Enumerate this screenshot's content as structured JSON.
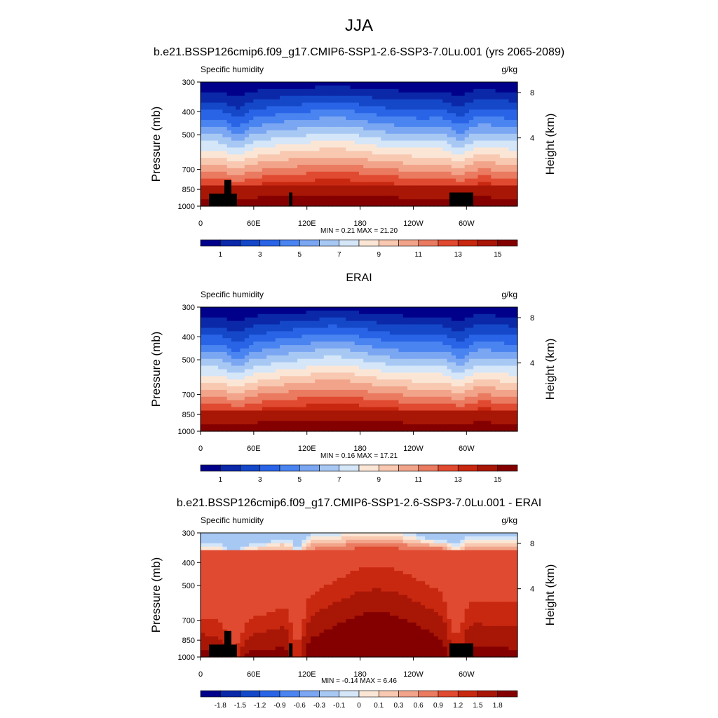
{
  "figure": {
    "title": "JJA",
    "panels": [
      {
        "title": "b.e21.BSSP126cmip6.f09_g17.CMIP6-SSP1-2.6-SSP3-7.0Lu.001 (yrs 2065-2089)",
        "left_label": "Specific humidity",
        "right_label": "g/kg",
        "stats": "MIN =   0.21  MAX =  21.20",
        "kind": "abs",
        "colorbar_labels": [
          "1",
          "3",
          "5",
          "7",
          "9",
          "11",
          "13",
          "15"
        ]
      },
      {
        "title": "ERAI",
        "left_label": "Specific humidity",
        "right_label": "g/kg",
        "stats": "MIN =   0.16  MAX =  17.21",
        "kind": "abs",
        "colorbar_labels": [
          "1",
          "3",
          "5",
          "7",
          "9",
          "11",
          "13",
          "15"
        ]
      },
      {
        "title": "b.e21.BSSP126cmip6.f09_g17.CMIP6-SSP1-2.6-SSP3-7.0Lu.001 - ERAI",
        "left_label": "Specific humidity",
        "right_label": "g/kg",
        "stats": "MIN =  -0.14  MAX =   6.46",
        "kind": "diff",
        "colorbar_labels": [
          "-1.8",
          "-1.5",
          "-1.2",
          "-0.9",
          "-0.6",
          "-0.3",
          "-0.1",
          "0",
          "0.1",
          "0.3",
          "0.6",
          "0.9",
          "1.2",
          "1.5",
          "1.8"
        ]
      }
    ]
  },
  "axes": {
    "ylabel_left": "Pressure (mb)",
    "ylabel_right": "Height (km)",
    "pressure_ticks": [
      "300",
      "400",
      "500",
      "700",
      "850",
      "1000"
    ],
    "height_ticks": [
      "8",
      "4"
    ],
    "lon_ticks": [
      "0",
      "60E",
      "120E",
      "180",
      "120W",
      "60W"
    ]
  },
  "colors": {
    "abs_scale": [
      "#00008b",
      "#0a28a8",
      "#1448c8",
      "#2a64e6",
      "#4a84f0",
      "#7aa6f2",
      "#a8c8f4",
      "#d4e6f8",
      "#fbe6d6",
      "#f8c8b0",
      "#f2a48a",
      "#ea7a60",
      "#e04a30",
      "#c82810",
      "#a81606",
      "#840000"
    ],
    "diff_scale": [
      "#00008b",
      "#0a28a8",
      "#1448c8",
      "#2a64e6",
      "#4a84f0",
      "#7aa6f2",
      "#a8c8f4",
      "#d4e6f8",
      "#fbe6d6",
      "#f8c8b0",
      "#f2a48a",
      "#ea7a60",
      "#e04a30",
      "#c82810",
      "#a81606",
      "#840000"
    ],
    "land_mask": "#000000"
  },
  "chart_data": [
    {
      "type": "heatmap",
      "title": "b.e21.BSSP126cmip6.f09_g17.CMIP6-SSP1-2.6-SSP3-7.0Lu.001 (yrs 2065-2089)",
      "variable": "Specific humidity",
      "units": "g/kg",
      "x_ticks": [
        "0",
        "60E",
        "120E",
        "180",
        "120W",
        "60W"
      ],
      "y_ticks_pressure_mb": [
        300,
        400,
        500,
        700,
        850,
        1000
      ],
      "y_ticks_height_km": [
        8,
        4
      ],
      "levels": [
        1,
        2,
        3,
        4,
        5,
        6,
        7,
        8,
        9,
        10,
        11,
        12,
        13,
        14,
        15
      ],
      "min": 0.21,
      "max": 21.2
    },
    {
      "type": "heatmap",
      "title": "ERAI",
      "variable": "Specific humidity",
      "units": "g/kg",
      "x_ticks": [
        "0",
        "60E",
        "120E",
        "180",
        "120W",
        "60W"
      ],
      "y_ticks_pressure_mb": [
        300,
        400,
        500,
        700,
        850,
        1000
      ],
      "y_ticks_height_km": [
        8,
        4
      ],
      "levels": [
        1,
        2,
        3,
        4,
        5,
        6,
        7,
        8,
        9,
        10,
        11,
        12,
        13,
        14,
        15
      ],
      "min": 0.16,
      "max": 17.21
    },
    {
      "type": "heatmap",
      "title": "b.e21.BSSP126cmip6.f09_g17.CMIP6-SSP1-2.6-SSP3-7.0Lu.001 - ERAI",
      "variable": "Specific humidity",
      "units": "g/kg",
      "x_ticks": [
        "0",
        "60E",
        "120E",
        "180",
        "120W",
        "60W"
      ],
      "y_ticks_pressure_mb": [
        300,
        400,
        500,
        700,
        850,
        1000
      ],
      "y_ticks_height_km": [
        8,
        4
      ],
      "levels": [
        -1.8,
        -1.5,
        -1.2,
        -0.9,
        -0.6,
        -0.3,
        -0.1,
        0,
        0.1,
        0.3,
        0.6,
        0.9,
        1.2,
        1.5,
        1.8
      ],
      "min": -0.14,
      "max": 6.46
    }
  ]
}
